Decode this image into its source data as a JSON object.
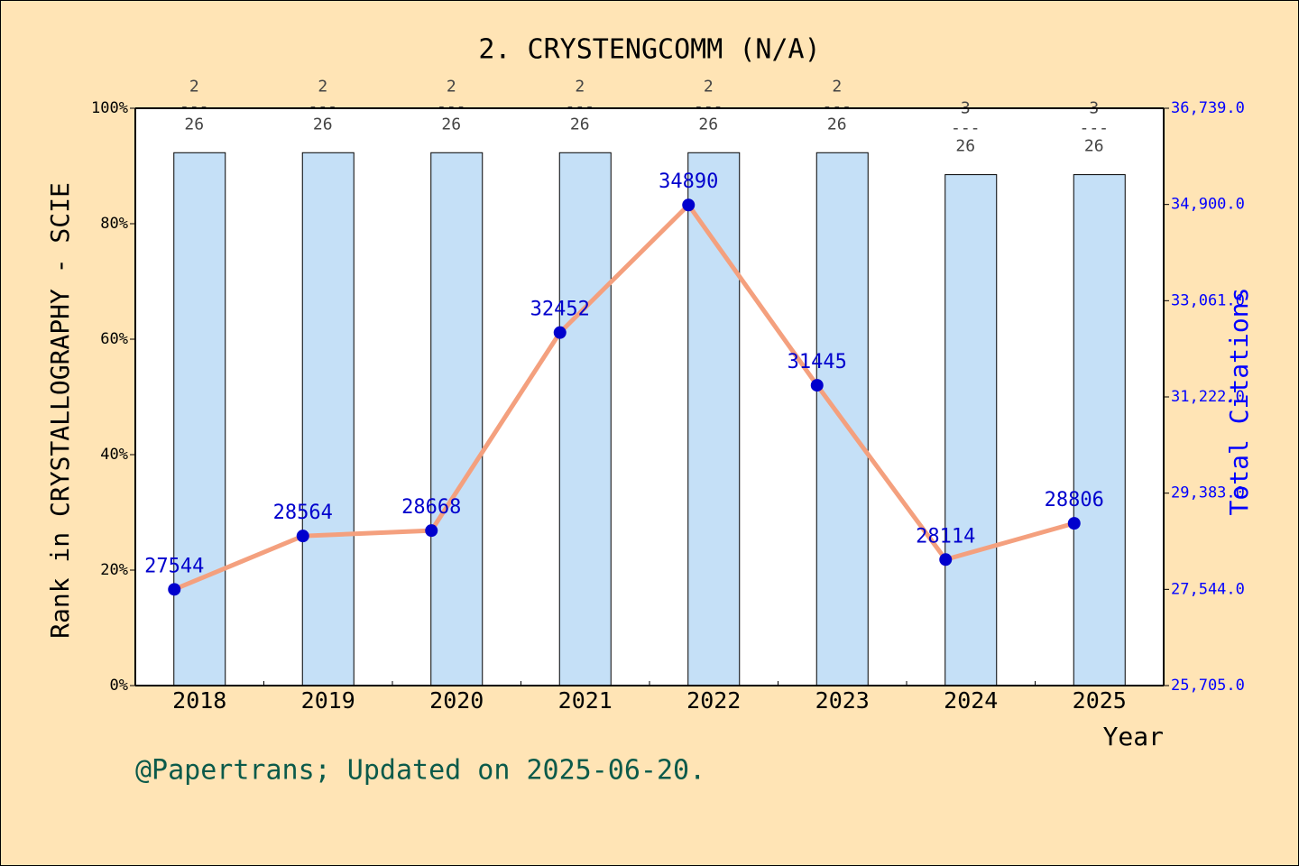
{
  "chart_data": {
    "type": "bar-line",
    "title": "2. CRYSTENGCOMM (N/A)",
    "y_label": "Rank in CRYSTALLOGRAPHY - SCIE",
    "y2_label": "Total Citations",
    "x_label": "Year",
    "footer": "@Papertrans; Updated on 2025-06-20.",
    "categories": [
      "2018",
      "2019",
      "2020",
      "2021",
      "2022",
      "2023",
      "2024",
      "2025"
    ],
    "series": [
      {
        "name": "Rank percentile",
        "type": "bar",
        "color": "#c5e0f7",
        "values": [
          92.3,
          92.3,
          92.3,
          92.3,
          92.3,
          92.3,
          88.5,
          88.5
        ],
        "ranks": [
          "2",
          "2",
          "2",
          "2",
          "2",
          "2",
          "3",
          "3"
        ],
        "totals": [
          "26",
          "26",
          "26",
          "26",
          "26",
          "26",
          "26",
          "26"
        ],
        "separator": "---"
      },
      {
        "name": "Total Citations",
        "type": "line",
        "axis": "y2",
        "color": "#f4a07e",
        "marker_color": "#0000cd",
        "values": [
          27544,
          28564,
          28668,
          32452,
          34890,
          31445,
          28114,
          28806
        ]
      }
    ],
    "ylim": [
      0,
      100
    ],
    "yticks": [
      {
        "value": 0,
        "label": "0%"
      },
      {
        "value": 20,
        "label": "20%"
      },
      {
        "value": 40,
        "label": "40%"
      },
      {
        "value": 60,
        "label": "60%"
      },
      {
        "value": 80,
        "label": "80%"
      },
      {
        "value": 100,
        "label": "100%"
      }
    ],
    "y2lim": [
      25705,
      36739
    ],
    "y2ticks": [
      {
        "value": 25705,
        "label": "25,705.0"
      },
      {
        "value": 27544,
        "label": "27,544.0"
      },
      {
        "value": 29383,
        "label": "29,383.0"
      },
      {
        "value": 31222,
        "label": "31,222.0"
      },
      {
        "value": 33061,
        "label": "33,061.0"
      },
      {
        "value": 34900,
        "label": "34,900.0"
      },
      {
        "value": 36739,
        "label": "36,739.0"
      }
    ]
  }
}
